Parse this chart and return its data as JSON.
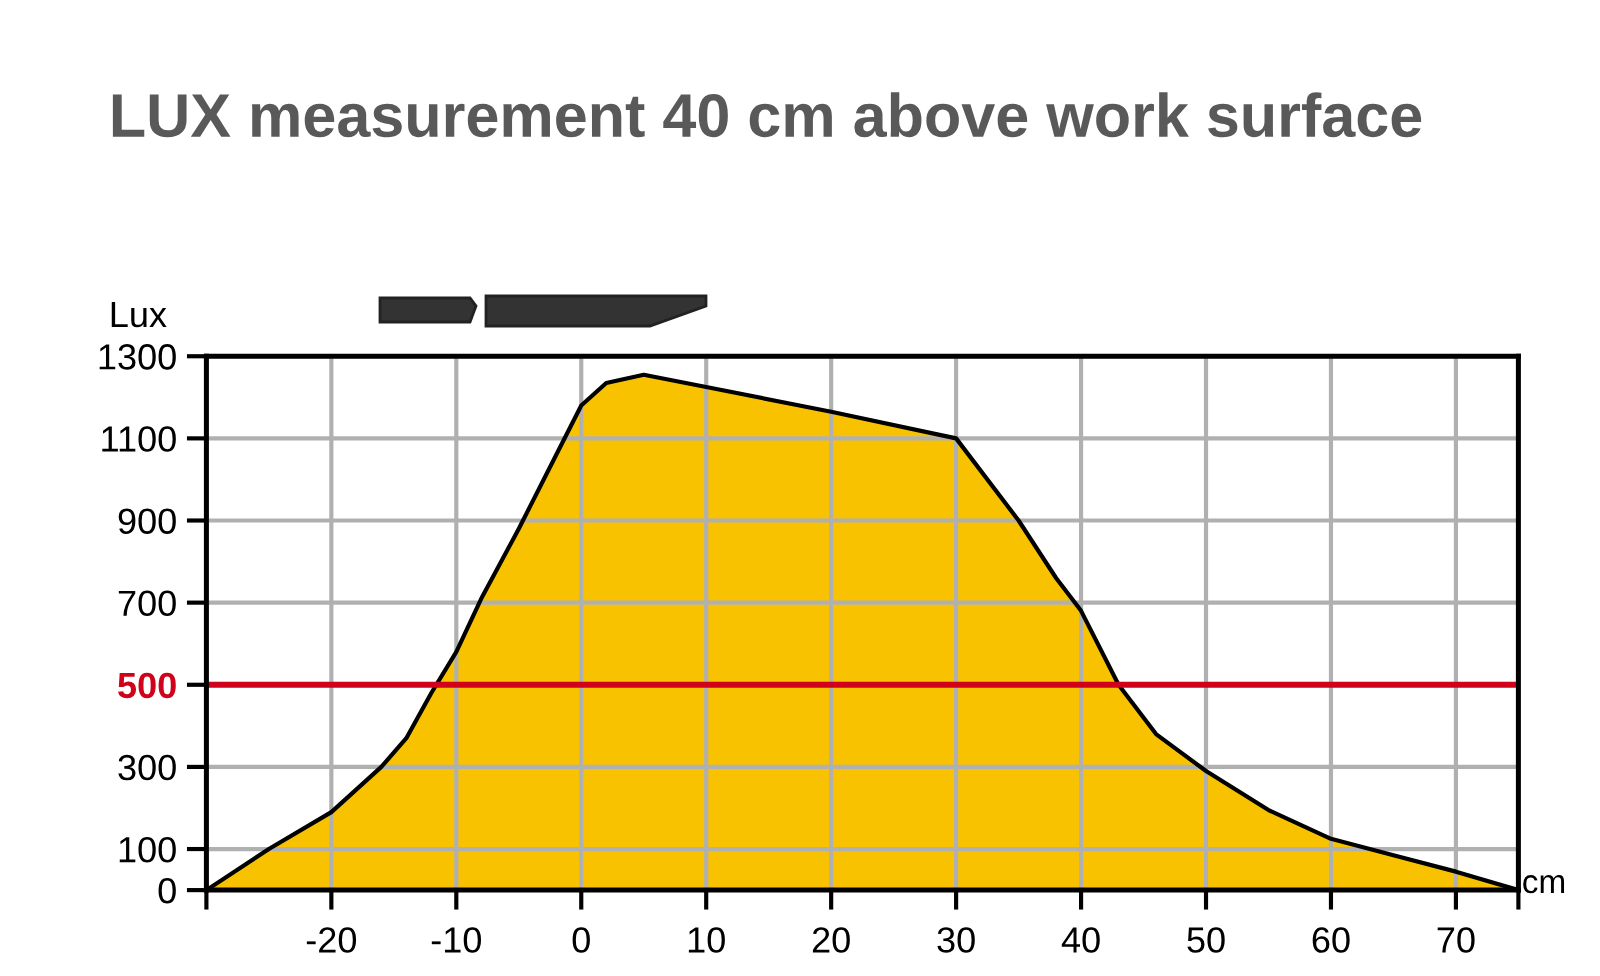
{
  "chart_data": {
    "type": "area",
    "title": "LUX measurement 40 cm above work surface",
    "xlabel": "cm",
    "ylabel": "Lux",
    "x": [
      -30,
      -25,
      -20,
      -16,
      -14,
      -12,
      -10,
      -8,
      -5,
      -2,
      0,
      2,
      5,
      10,
      20,
      30,
      35,
      38,
      40,
      43,
      46,
      50,
      55,
      60,
      65,
      70,
      75
    ],
    "series": [
      {
        "color": "#f9c200",
        "values": [
          0,
          100,
          190,
          300,
          370,
          480,
          580,
          710,
          880,
          1060,
          1180,
          1235,
          1255,
          1225,
          1165,
          1100,
          900,
          760,
          680,
          500,
          380,
          290,
          195,
          125,
          85,
          45,
          0
        ]
      }
    ],
    "xlim": [
      -30,
      75
    ],
    "xticks": [
      {
        "value": -30,
        "label": null
      },
      -20,
      -10,
      0,
      10,
      20,
      30,
      40,
      50,
      60,
      70,
      {
        "value": 75,
        "label": null
      }
    ],
    "ylim": [
      0,
      1300
    ],
    "yticks": [
      0,
      100,
      300,
      500,
      700,
      900,
      1100,
      1300
    ],
    "ref_lines": [
      {
        "axis": "y",
        "value": 500,
        "color": "#d0021b"
      }
    ],
    "grid": true
  }
}
